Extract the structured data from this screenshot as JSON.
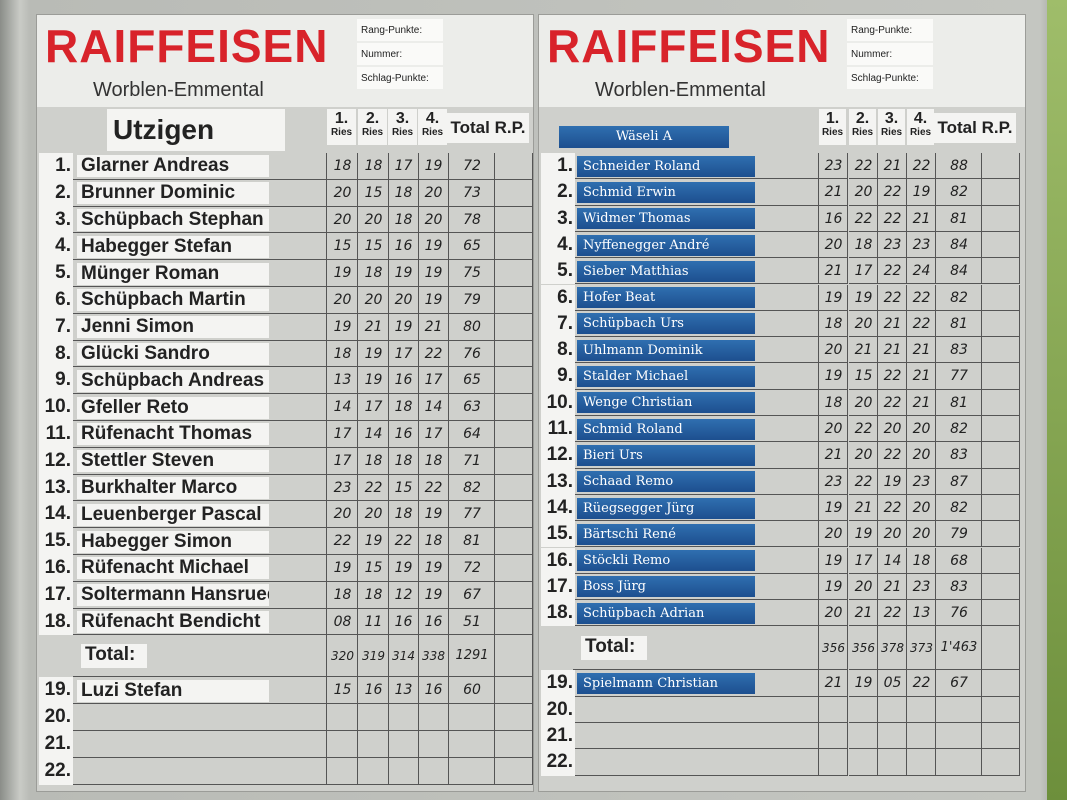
{
  "brand": {
    "logo": "RAIFFEISEN",
    "branch": "Worblen-Emmental",
    "brand_color": "#d8232a",
    "label_blue": "#1f5596"
  },
  "meta_labels": [
    "Rang-Punkte:",
    "Nummer:",
    "Schlag-Punkte:"
  ],
  "columns": {
    "ries": [
      "1.",
      "2.",
      "3.",
      "4."
    ],
    "ries_sub": "Ries",
    "total": "Total R.P."
  },
  "left": {
    "team": "Utzigen",
    "rows": [
      {
        "rank": "1.",
        "name": "Glarner Andreas",
        "scores": [
          "18",
          "18",
          "17",
          "19"
        ],
        "total": "72"
      },
      {
        "rank": "2.",
        "name": "Brunner Dominic",
        "scores": [
          "20",
          "15",
          "18",
          "20"
        ],
        "total": "73"
      },
      {
        "rank": "3.",
        "name": "Schüpbach Stephan",
        "scores": [
          "20",
          "20",
          "18",
          "20"
        ],
        "total": "78"
      },
      {
        "rank": "4.",
        "name": "Habegger Stefan",
        "scores": [
          "15",
          "15",
          "16",
          "19"
        ],
        "total": "65"
      },
      {
        "rank": "5.",
        "name": "Münger Roman",
        "scores": [
          "19",
          "18",
          "19",
          "19"
        ],
        "total": "75"
      },
      {
        "rank": "6.",
        "name": "Schüpbach Martin",
        "scores": [
          "20",
          "20",
          "20",
          "19"
        ],
        "total": "79"
      },
      {
        "rank": "7.",
        "name": "Jenni Simon",
        "scores": [
          "19",
          "21",
          "19",
          "21"
        ],
        "total": "80"
      },
      {
        "rank": "8.",
        "name": "Glücki Sandro",
        "scores": [
          "18",
          "19",
          "17",
          "22"
        ],
        "total": "76"
      },
      {
        "rank": "9.",
        "name": "Schüpbach Andreas",
        "scores": [
          "13",
          "19",
          "16",
          "17"
        ],
        "total": "65"
      },
      {
        "rank": "10.",
        "name": "Gfeller Reto",
        "scores": [
          "14",
          "17",
          "18",
          "14"
        ],
        "total": "63"
      },
      {
        "rank": "11.",
        "name": "Rüfenacht Thomas",
        "scores": [
          "17",
          "14",
          "16",
          "17"
        ],
        "total": "64"
      },
      {
        "rank": "12.",
        "name": "Stettler Steven",
        "scores": [
          "17",
          "18",
          "18",
          "18"
        ],
        "total": "71"
      },
      {
        "rank": "13.",
        "name": "Burkhalter Marco",
        "scores": [
          "23",
          "22",
          "15",
          "22"
        ],
        "total": "82"
      },
      {
        "rank": "14.",
        "name": "Leuenberger Pascal",
        "scores": [
          "20",
          "20",
          "18",
          "19"
        ],
        "total": "77"
      },
      {
        "rank": "15.",
        "name": "Habegger Simon",
        "scores": [
          "22",
          "19",
          "22",
          "18"
        ],
        "total": "81"
      },
      {
        "rank": "16.",
        "name": "Rüfenacht Michael",
        "scores": [
          "19",
          "15",
          "19",
          "19"
        ],
        "total": "72"
      },
      {
        "rank": "17.",
        "name": "Soltermann Hansruedi",
        "scores": [
          "18",
          "18",
          "12",
          "19"
        ],
        "total": "67"
      },
      {
        "rank": "18.",
        "name": "Rüfenacht Bendicht",
        "scores": [
          "08",
          "11",
          "16",
          "16"
        ],
        "total": "51"
      }
    ],
    "total": {
      "label": "Total:",
      "scores": [
        "320",
        "319",
        "314",
        "338"
      ],
      "total": "1291"
    },
    "extra": [
      {
        "rank": "19.",
        "name": "Luzi Stefan",
        "scores": [
          "15",
          "16",
          "13",
          "16"
        ],
        "total": "60"
      },
      {
        "rank": "20.",
        "name": "",
        "scores": [],
        "total": ""
      },
      {
        "rank": "21.",
        "name": "",
        "scores": [],
        "total": ""
      },
      {
        "rank": "22.",
        "name": "",
        "scores": [],
        "total": ""
      }
    ]
  },
  "right": {
    "team": "Wäseli A",
    "rows": [
      {
        "rank": "1.",
        "name": "Schneider Roland",
        "scores": [
          "23",
          "22",
          "21",
          "22"
        ],
        "total": "88"
      },
      {
        "rank": "2.",
        "name": "Schmid Erwin",
        "scores": [
          "21",
          "20",
          "22",
          "19"
        ],
        "total": "82"
      },
      {
        "rank": "3.",
        "name": "Widmer Thomas",
        "scores": [
          "16",
          "22",
          "22",
          "21"
        ],
        "total": "81"
      },
      {
        "rank": "4.",
        "name": "Nyffenegger André",
        "scores": [
          "20",
          "18",
          "23",
          "23"
        ],
        "total": "84"
      },
      {
        "rank": "5.",
        "name": "Sieber Matthias",
        "scores": [
          "21",
          "17",
          "22",
          "24"
        ],
        "total": "84"
      },
      {
        "rank": "6.",
        "name": "Hofer Beat",
        "scores": [
          "19",
          "19",
          "22",
          "22"
        ],
        "total": "82"
      },
      {
        "rank": "7.",
        "name": "Schüpbach Urs",
        "scores": [
          "18",
          "20",
          "21",
          "22"
        ],
        "total": "81"
      },
      {
        "rank": "8.",
        "name": "Uhlmann Dominik",
        "scores": [
          "20",
          "21",
          "21",
          "21"
        ],
        "total": "83"
      },
      {
        "rank": "9.",
        "name": "Stalder Michael",
        "scores": [
          "19",
          "15",
          "22",
          "21"
        ],
        "total": "77"
      },
      {
        "rank": "10.",
        "name": "Wenge Christian",
        "scores": [
          "18",
          "20",
          "22",
          "21"
        ],
        "total": "81"
      },
      {
        "rank": "11.",
        "name": "Schmid Roland",
        "scores": [
          "20",
          "22",
          "20",
          "20"
        ],
        "total": "82"
      },
      {
        "rank": "12.",
        "name": "Bieri Urs",
        "scores": [
          "21",
          "20",
          "22",
          "20"
        ],
        "total": "83"
      },
      {
        "rank": "13.",
        "name": "Schaad Remo",
        "scores": [
          "23",
          "22",
          "19",
          "23"
        ],
        "total": "87"
      },
      {
        "rank": "14.",
        "name": "Rüegsegger Jürg",
        "scores": [
          "19",
          "21",
          "22",
          "20"
        ],
        "total": "82"
      },
      {
        "rank": "15.",
        "name": "Bärtschi René",
        "scores": [
          "20",
          "19",
          "20",
          "20"
        ],
        "total": "79"
      },
      {
        "rank": "16.",
        "name": "Stöckli Remo",
        "scores": [
          "19",
          "17",
          "14",
          "18"
        ],
        "total": "68"
      },
      {
        "rank": "17.",
        "name": "Boss Jürg",
        "scores": [
          "19",
          "20",
          "21",
          "23"
        ],
        "total": "83"
      },
      {
        "rank": "18.",
        "name": "Schüpbach Adrian",
        "scores": [
          "20",
          "21",
          "22",
          "13"
        ],
        "total": "76"
      }
    ],
    "total": {
      "label": "Total:",
      "scores": [
        "356",
        "356",
        "378",
        "373"
      ],
      "total": "1'463"
    },
    "extra": [
      {
        "rank": "19.",
        "name": "Spielmann Christian",
        "scores": [
          "21",
          "19",
          "05",
          "22"
        ],
        "total": "67"
      },
      {
        "rank": "20.",
        "name": "",
        "scores": [],
        "total": ""
      },
      {
        "rank": "21.",
        "name": "",
        "scores": [],
        "total": ""
      },
      {
        "rank": "22.",
        "name": "",
        "scores": [],
        "total": ""
      }
    ]
  }
}
